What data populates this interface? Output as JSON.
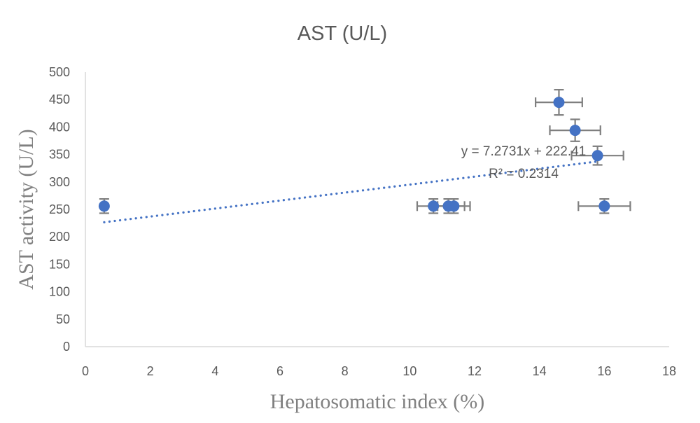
{
  "chart_data": {
    "type": "scatter",
    "title": "AST (U/L)",
    "xlabel": "Hepatosomatic index (%)",
    "ylabel": "AST activity (U/L)",
    "xlim": [
      0,
      18
    ],
    "ylim": [
      0,
      500
    ],
    "x_ticks": [
      0,
      2,
      4,
      6,
      8,
      10,
      12,
      14,
      16,
      18
    ],
    "y_ticks": [
      0,
      50,
      100,
      150,
      200,
      250,
      300,
      350,
      400,
      450,
      500
    ],
    "grid": false,
    "legend": "none",
    "series": [
      {
        "name": "AST",
        "color": "#4472C4",
        "points": [
          {
            "x": 0.58,
            "y": 256,
            "xerr": 0.0,
            "yerr": 13
          },
          {
            "x": 10.73,
            "y": 256,
            "xerr": 0.5,
            "yerr": 13
          },
          {
            "x": 11.19,
            "y": 256,
            "xerr": 0.5,
            "yerr": 13
          },
          {
            "x": 11.36,
            "y": 256,
            "xerr": 0.5,
            "yerr": 13
          },
          {
            "x": 14.6,
            "y": 445,
            "xerr": 0.72,
            "yerr": 23
          },
          {
            "x": 15.1,
            "y": 394,
            "xerr": 0.78,
            "yerr": 20
          },
          {
            "x": 15.79,
            "y": 348,
            "xerr": 0.8,
            "yerr": 17
          },
          {
            "x": 16.0,
            "y": 256,
            "xerr": 0.8,
            "yerr": 13
          }
        ]
      }
    ],
    "trendline": {
      "type": "linear",
      "slope": 7.2731,
      "intercept": 222.41,
      "x_range": [
        0.58,
        15.8
      ],
      "equation_label": "y = 7.2731x + 222.41",
      "r2_label": "R² = 0.2314",
      "color": "#4472C4"
    }
  }
}
